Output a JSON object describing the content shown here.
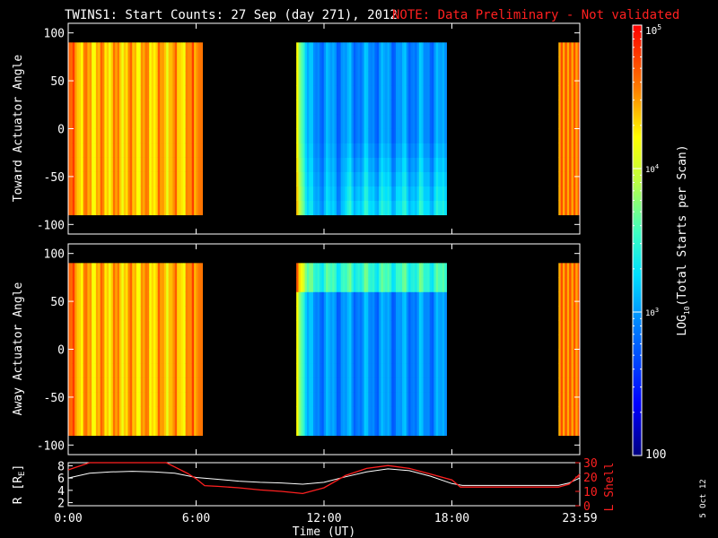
{
  "title": "TWINS1: Start Counts: 27 Sep (day 271), 2012",
  "note": "NOTE: Data Preliminary - Not validated",
  "date_stamp": "5 Oct 12",
  "colors": {
    "background": "#000000",
    "note": "#ff2020",
    "r_line": "#ffffff",
    "lshell_line": "#ff2020"
  },
  "chart_data": [
    {
      "type": "heatmap",
      "name": "toward",
      "ylabel": "Toward Actuator Angle",
      "ylim": [
        -110,
        110
      ],
      "yticks": [
        100,
        50,
        0,
        -50,
        -100
      ],
      "angle_range": [
        -90,
        90
      ],
      "x_unit": "hours UT",
      "data_intervals": [
        [
          0.0,
          6.3
        ],
        [
          10.7,
          17.75
        ],
        [
          23.0,
          24.0
        ]
      ],
      "grid": false
    },
    {
      "type": "heatmap",
      "name": "away",
      "ylabel": "Away Actuator Angle",
      "ylim": [
        -110,
        110
      ],
      "yticks": [
        100,
        50,
        0,
        -50,
        -100
      ],
      "angle_range": [
        -90,
        90
      ],
      "x_unit": "hours UT",
      "data_intervals": [
        [
          0.0,
          6.3
        ],
        [
          10.7,
          17.75
        ],
        [
          23.0,
          24.0
        ]
      ],
      "grid": false
    },
    {
      "type": "line",
      "name": "orbit",
      "ylabel": "R [R",
      "ylabel_sub": "E",
      "ylabel_end": "]",
      "ylim": [
        1.5,
        8.5
      ],
      "yticks": [
        8,
        6,
        4,
        2
      ],
      "y2label": "L Shell",
      "y2lim": [
        0,
        30
      ],
      "y2ticks": [
        30,
        20,
        10,
        0
      ],
      "series": [
        {
          "key": "R",
          "x": [
            0,
            1,
            2,
            3,
            4,
            5,
            6,
            7,
            8,
            9,
            10,
            11,
            12,
            13,
            14,
            15,
            16,
            17,
            18,
            18.5,
            19,
            20,
            21,
            22,
            23,
            23.5,
            24
          ],
          "y": [
            6.0,
            6.8,
            7.0,
            7.1,
            7.0,
            6.8,
            6.1,
            5.8,
            5.5,
            5.3,
            5.2,
            5.0,
            5.3,
            6.2,
            7.0,
            7.5,
            7.2,
            6.3,
            5.1,
            4.8,
            4.8,
            4.8,
            4.8,
            4.8,
            4.8,
            5.2,
            6.0
          ]
        },
        {
          "key": "L",
          "x": [
            0,
            1,
            2,
            3,
            4,
            4.6,
            5,
            5.6,
            6.0,
            6.4,
            7,
            8,
            9,
            10,
            11,
            12,
            13,
            14,
            15,
            16,
            17,
            18,
            18.4,
            19,
            20,
            21,
            22,
            23,
            23.5,
            24
          ],
          "y": [
            25,
            31,
            32,
            32,
            32,
            30,
            27,
            22.5,
            18.8,
            14,
            13.5,
            12.5,
            11,
            10,
            8.5,
            12.5,
            21,
            26,
            28,
            26,
            22,
            18,
            13,
            13,
            13,
            13,
            13,
            13,
            15,
            22
          ]
        }
      ],
      "xticks": [
        "0:00",
        "6:00",
        "12:00",
        "18:00",
        "23:59"
      ],
      "xtick_hours": [
        0,
        6,
        12,
        18,
        24
      ],
      "xlabel": "Time (UT)"
    }
  ],
  "colorbar": {
    "label_pre": "LOG",
    "label_sub": "10",
    "label_post": "(Total Starts per Scan)",
    "scale": "log",
    "range": [
      100,
      100000
    ],
    "top_label_base": "10",
    "top_label_exp": "5",
    "mid_label_base": "10",
    "mid_label_exp": "4",
    "low_label_base": "10",
    "low_label_exp": "3",
    "bottom_label": "100"
  }
}
